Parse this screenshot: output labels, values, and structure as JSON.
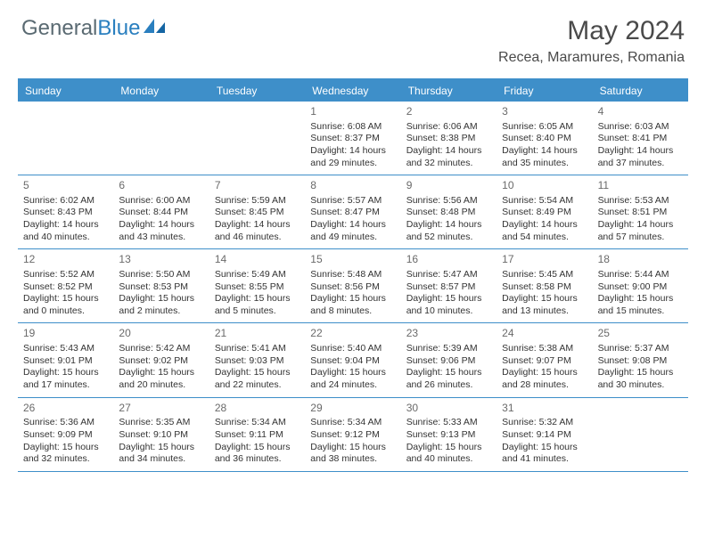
{
  "brand": {
    "text1": "General",
    "text2": "Blue"
  },
  "title": "May 2024",
  "location": "Recea, Maramures, Romania",
  "day_names": [
    "Sunday",
    "Monday",
    "Tuesday",
    "Wednesday",
    "Thursday",
    "Friday",
    "Saturday"
  ],
  "colors": {
    "header_bg": "#3e8fc9",
    "header_text": "#ffffff",
    "border": "#3e8fc9",
    "page_bg": "#ffffff",
    "text": "#333333",
    "daynum": "#6a6a6a",
    "logo_gray": "#5a6a72",
    "logo_blue": "#2a7fbf"
  },
  "weeks": [
    [
      {},
      {},
      {},
      {
        "n": "1",
        "sr": "6:08 AM",
        "ss": "8:37 PM",
        "dl": "14 hours and 29 minutes."
      },
      {
        "n": "2",
        "sr": "6:06 AM",
        "ss": "8:38 PM",
        "dl": "14 hours and 32 minutes."
      },
      {
        "n": "3",
        "sr": "6:05 AM",
        "ss": "8:40 PM",
        "dl": "14 hours and 35 minutes."
      },
      {
        "n": "4",
        "sr": "6:03 AM",
        "ss": "8:41 PM",
        "dl": "14 hours and 37 minutes."
      }
    ],
    [
      {
        "n": "5",
        "sr": "6:02 AM",
        "ss": "8:43 PM",
        "dl": "14 hours and 40 minutes."
      },
      {
        "n": "6",
        "sr": "6:00 AM",
        "ss": "8:44 PM",
        "dl": "14 hours and 43 minutes."
      },
      {
        "n": "7",
        "sr": "5:59 AM",
        "ss": "8:45 PM",
        "dl": "14 hours and 46 minutes."
      },
      {
        "n": "8",
        "sr": "5:57 AM",
        "ss": "8:47 PM",
        "dl": "14 hours and 49 minutes."
      },
      {
        "n": "9",
        "sr": "5:56 AM",
        "ss": "8:48 PM",
        "dl": "14 hours and 52 minutes."
      },
      {
        "n": "10",
        "sr": "5:54 AM",
        "ss": "8:49 PM",
        "dl": "14 hours and 54 minutes."
      },
      {
        "n": "11",
        "sr": "5:53 AM",
        "ss": "8:51 PM",
        "dl": "14 hours and 57 minutes."
      }
    ],
    [
      {
        "n": "12",
        "sr": "5:52 AM",
        "ss": "8:52 PM",
        "dl": "15 hours and 0 minutes."
      },
      {
        "n": "13",
        "sr": "5:50 AM",
        "ss": "8:53 PM",
        "dl": "15 hours and 2 minutes."
      },
      {
        "n": "14",
        "sr": "5:49 AM",
        "ss": "8:55 PM",
        "dl": "15 hours and 5 minutes."
      },
      {
        "n": "15",
        "sr": "5:48 AM",
        "ss": "8:56 PM",
        "dl": "15 hours and 8 minutes."
      },
      {
        "n": "16",
        "sr": "5:47 AM",
        "ss": "8:57 PM",
        "dl": "15 hours and 10 minutes."
      },
      {
        "n": "17",
        "sr": "5:45 AM",
        "ss": "8:58 PM",
        "dl": "15 hours and 13 minutes."
      },
      {
        "n": "18",
        "sr": "5:44 AM",
        "ss": "9:00 PM",
        "dl": "15 hours and 15 minutes."
      }
    ],
    [
      {
        "n": "19",
        "sr": "5:43 AM",
        "ss": "9:01 PM",
        "dl": "15 hours and 17 minutes."
      },
      {
        "n": "20",
        "sr": "5:42 AM",
        "ss": "9:02 PM",
        "dl": "15 hours and 20 minutes."
      },
      {
        "n": "21",
        "sr": "5:41 AM",
        "ss": "9:03 PM",
        "dl": "15 hours and 22 minutes."
      },
      {
        "n": "22",
        "sr": "5:40 AM",
        "ss": "9:04 PM",
        "dl": "15 hours and 24 minutes."
      },
      {
        "n": "23",
        "sr": "5:39 AM",
        "ss": "9:06 PM",
        "dl": "15 hours and 26 minutes."
      },
      {
        "n": "24",
        "sr": "5:38 AM",
        "ss": "9:07 PM",
        "dl": "15 hours and 28 minutes."
      },
      {
        "n": "25",
        "sr": "5:37 AM",
        "ss": "9:08 PM",
        "dl": "15 hours and 30 minutes."
      }
    ],
    [
      {
        "n": "26",
        "sr": "5:36 AM",
        "ss": "9:09 PM",
        "dl": "15 hours and 32 minutes."
      },
      {
        "n": "27",
        "sr": "5:35 AM",
        "ss": "9:10 PM",
        "dl": "15 hours and 34 minutes."
      },
      {
        "n": "28",
        "sr": "5:34 AM",
        "ss": "9:11 PM",
        "dl": "15 hours and 36 minutes."
      },
      {
        "n": "29",
        "sr": "5:34 AM",
        "ss": "9:12 PM",
        "dl": "15 hours and 38 minutes."
      },
      {
        "n": "30",
        "sr": "5:33 AM",
        "ss": "9:13 PM",
        "dl": "15 hours and 40 minutes."
      },
      {
        "n": "31",
        "sr": "5:32 AM",
        "ss": "9:14 PM",
        "dl": "15 hours and 41 minutes."
      },
      {}
    ]
  ],
  "labels": {
    "sunrise": "Sunrise:",
    "sunset": "Sunset:",
    "daylight": "Daylight:"
  }
}
